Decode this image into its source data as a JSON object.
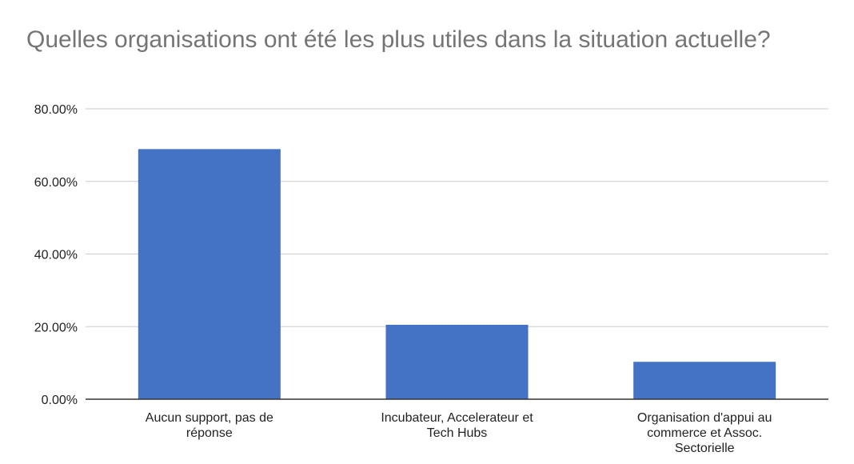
{
  "chart_data": {
    "type": "bar",
    "title": "Quelles organisations ont été les plus utiles dans la situation actuelle?",
    "xlabel": "",
    "ylabel": "",
    "categories": [
      "Aucun support, pas de réponse",
      "Incubateur, Accelerateur et Tech Hubs",
      "Organisation d'appui au commerce et Assoc. Sectorielle"
    ],
    "category_lines": [
      [
        "Aucun support, pas de",
        "réponse"
      ],
      [
        "Incubateur, Accelerateur et",
        "Tech Hubs"
      ],
      [
        "Organisation d'appui au",
        "commerce et Assoc.",
        "Sectorielle"
      ]
    ],
    "values": [
      68.9,
      20.5,
      10.3
    ],
    "ylim": [
      0,
      80
    ],
    "yticks": [
      0,
      20,
      40,
      60,
      80
    ],
    "ytick_labels": [
      "0.00%",
      "20.00%",
      "40.00%",
      "60.00%",
      "80.00%"
    ],
    "grid": true,
    "legend": "none",
    "bar_color": "#4472C4",
    "grid_color": "#CCCCCC",
    "axis_color": "#333333"
  }
}
